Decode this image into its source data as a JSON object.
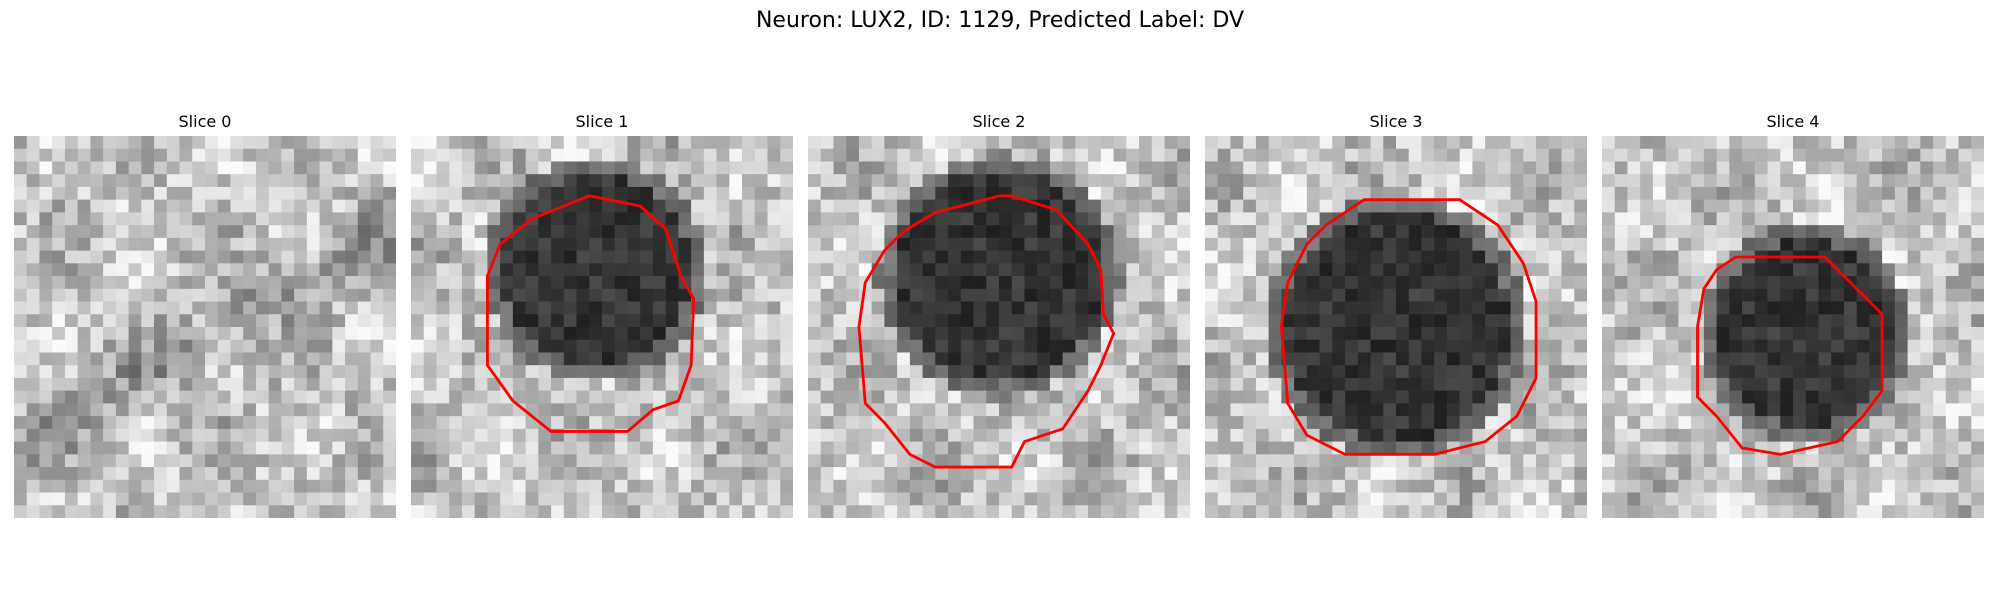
{
  "figure": {
    "title": "Neuron: LUX2, ID: 1129, Predicted Label: DV",
    "overlay_color": "#ff0000"
  },
  "slices": [
    {
      "label": "Slice 0",
      "has_contour": false,
      "seed": 11
    },
    {
      "label": "Slice 1",
      "has_contour": true,
      "seed": 23
    },
    {
      "label": "Slice 2",
      "has_contour": true,
      "seed": 37
    },
    {
      "label": "Slice 3",
      "has_contour": true,
      "seed": 51
    },
    {
      "label": "Slice 4",
      "has_contour": true,
      "seed": 67
    }
  ]
}
